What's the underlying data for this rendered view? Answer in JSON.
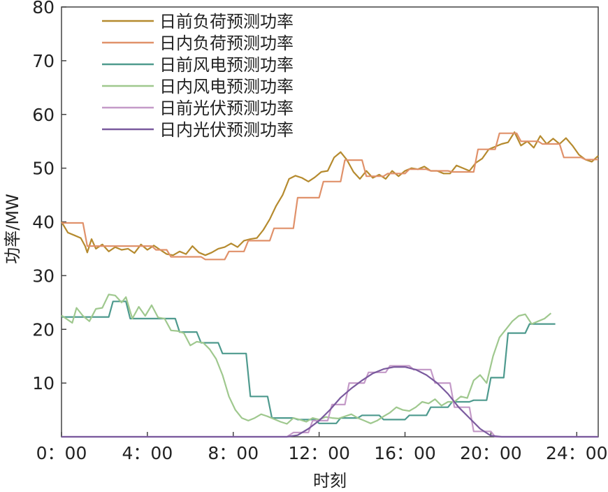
{
  "chart_data": {
    "type": "line",
    "xlabel": "时刻",
    "ylabel": "功率/MW",
    "xlim": [
      0,
      25
    ],
    "ylim": [
      0,
      80
    ],
    "xticks": [
      {
        "x": 0,
        "label": "0：00"
      },
      {
        "x": 4,
        "label": "4：00"
      },
      {
        "x": 8,
        "label": "8：00"
      },
      {
        "x": 12,
        "label": "12：00"
      },
      {
        "x": 16,
        "label": "16：00"
      },
      {
        "x": 20,
        "label": "20：00"
      },
      {
        "x": 24,
        "label": "24：00"
      }
    ],
    "yticks": [
      {
        "y": 10,
        "label": "10"
      },
      {
        "y": 20,
        "label": "20"
      },
      {
        "y": 30,
        "label": "30"
      },
      {
        "y": 40,
        "label": "40"
      },
      {
        "y": 50,
        "label": "50"
      },
      {
        "y": 60,
        "label": "60"
      },
      {
        "y": 70,
        "label": "70"
      },
      {
        "y": 80,
        "label": "80"
      }
    ],
    "legend_position": "top-left",
    "grid": false,
    "series": [
      {
        "name": "日前负荷预测功率",
        "color": "#b58a2e",
        "points": [
          [
            0,
            40
          ],
          [
            0.3,
            38
          ],
          [
            0.6,
            37.5
          ],
          [
            0.9,
            37
          ],
          [
            1.1,
            35.5
          ],
          [
            1.2,
            34.3
          ],
          [
            1.4,
            36.8
          ],
          [
            1.6,
            35
          ],
          [
            1.9,
            35.8
          ],
          [
            2.2,
            34.5
          ],
          [
            2.5,
            35.3
          ],
          [
            2.8,
            34.8
          ],
          [
            3.1,
            35
          ],
          [
            3.4,
            34.2
          ],
          [
            3.7,
            35.8
          ],
          [
            4,
            34.8
          ],
          [
            4.3,
            35.6
          ],
          [
            4.6,
            34.8
          ],
          [
            4.9,
            34
          ],
          [
            5.2,
            33.8
          ],
          [
            5.5,
            34.5
          ],
          [
            5.8,
            34
          ],
          [
            6.1,
            35.5
          ],
          [
            6.4,
            34.3
          ],
          [
            6.7,
            33.8
          ],
          [
            7,
            34.3
          ],
          [
            7.3,
            35
          ],
          [
            7.6,
            35.3
          ],
          [
            7.9,
            36
          ],
          [
            8.2,
            35.3
          ],
          [
            8.5,
            36.5
          ],
          [
            8.8,
            36.8
          ],
          [
            9.1,
            37
          ],
          [
            9.4,
            38.5
          ],
          [
            9.7,
            40.5
          ],
          [
            10,
            43
          ],
          [
            10.3,
            45
          ],
          [
            10.6,
            48
          ],
          [
            10.9,
            48.6
          ],
          [
            11.2,
            48.2
          ],
          [
            11.5,
            47.5
          ],
          [
            11.8,
            48.3
          ],
          [
            12.1,
            49.3
          ],
          [
            12.4,
            49.5
          ],
          [
            12.7,
            52
          ],
          [
            13,
            53
          ],
          [
            13.3,
            51.5
          ],
          [
            13.6,
            49.3
          ],
          [
            13.9,
            48
          ],
          [
            14.2,
            49.5
          ],
          [
            14.5,
            48.2
          ],
          [
            14.8,
            48.8
          ],
          [
            15.1,
            48
          ],
          [
            15.4,
            49.5
          ],
          [
            15.7,
            48.5
          ],
          [
            16,
            49.5
          ],
          [
            16.3,
            50
          ],
          [
            16.6,
            49.8
          ],
          [
            16.9,
            50.3
          ],
          [
            17.2,
            49.5
          ],
          [
            17.5,
            49.5
          ],
          [
            17.8,
            49
          ],
          [
            18.1,
            49
          ],
          [
            18.4,
            50.5
          ],
          [
            18.7,
            50
          ],
          [
            19,
            49.5
          ],
          [
            19.3,
            51
          ],
          [
            19.6,
            51.8
          ],
          [
            19.9,
            53.5
          ],
          [
            20.2,
            54
          ],
          [
            20.5,
            54.5
          ],
          [
            20.8,
            54.8
          ],
          [
            21.1,
            56.7
          ],
          [
            21.4,
            54.2
          ],
          [
            21.7,
            55
          ],
          [
            22,
            53.8
          ],
          [
            22.3,
            56
          ],
          [
            22.6,
            54.5
          ],
          [
            22.9,
            55.5
          ],
          [
            23.2,
            54.5
          ],
          [
            23.5,
            55.6
          ],
          [
            23.8,
            54.2
          ],
          [
            24.1,
            52.5
          ],
          [
            24.4,
            51.6
          ],
          [
            24.7,
            51.2
          ],
          [
            25,
            52.3
          ]
        ]
      },
      {
        "name": "日内负荷预测功率",
        "color": "#e0916a",
        "points": [
          [
            0,
            39.8
          ],
          [
            1.0,
            39.8
          ],
          [
            1.2,
            35.5
          ],
          [
            4.2,
            35.5
          ],
          [
            4.4,
            34.8
          ],
          [
            4.9,
            34.8
          ],
          [
            5.1,
            33.5
          ],
          [
            6.5,
            33.5
          ],
          [
            6.7,
            33
          ],
          [
            7.6,
            33
          ],
          [
            7.8,
            34.5
          ],
          [
            8.5,
            34.5
          ],
          [
            8.7,
            36.5
          ],
          [
            9.7,
            36.5
          ],
          [
            9.9,
            38.8
          ],
          [
            10.8,
            38.8
          ],
          [
            11,
            44.5
          ],
          [
            12,
            44.5
          ],
          [
            12.2,
            47.5
          ],
          [
            13,
            47.5
          ],
          [
            13.2,
            51.5
          ],
          [
            14,
            51.5
          ],
          [
            14.2,
            48.5
          ],
          [
            15,
            48.5
          ],
          [
            15.2,
            49
          ],
          [
            16,
            49
          ],
          [
            16.2,
            49.8
          ],
          [
            17,
            49.8
          ],
          [
            17.2,
            49.5
          ],
          [
            18,
            49.5
          ],
          [
            18.2,
            49.3
          ],
          [
            19.2,
            49.3
          ],
          [
            19.4,
            53.5
          ],
          [
            20.2,
            53.5
          ],
          [
            20.4,
            56.5
          ],
          [
            21.2,
            56.5
          ],
          [
            21.4,
            55
          ],
          [
            22.2,
            55
          ],
          [
            22.4,
            54.5
          ],
          [
            23.2,
            54.5
          ],
          [
            23.4,
            52
          ],
          [
            24.2,
            52
          ],
          [
            24.4,
            51.6
          ],
          [
            25,
            51.6
          ]
        ]
      },
      {
        "name": "日前风电预测功率",
        "color": "#4e9a8e",
        "points": [
          [
            0,
            22.3
          ],
          [
            2.2,
            22.3
          ],
          [
            2.4,
            25.2
          ],
          [
            3.0,
            25.2
          ],
          [
            3.2,
            22
          ],
          [
            5.3,
            22
          ],
          [
            5.5,
            19.5
          ],
          [
            6.3,
            19.5
          ],
          [
            6.5,
            17.5
          ],
          [
            7.3,
            17.5
          ],
          [
            7.5,
            15.5
          ],
          [
            8.6,
            15.5
          ],
          [
            8.8,
            7.5
          ],
          [
            9.6,
            7.5
          ],
          [
            9.8,
            3.5
          ],
          [
            10.8,
            3.5
          ],
          [
            11,
            3.2
          ],
          [
            11.8,
            3.2
          ],
          [
            12,
            2.5
          ],
          [
            12.8,
            2.5
          ],
          [
            13,
            3.5
          ],
          [
            13.8,
            3.5
          ],
          [
            14,
            4
          ],
          [
            14.8,
            4
          ],
          [
            15,
            3.2
          ],
          [
            16,
            3.2
          ],
          [
            16.2,
            4
          ],
          [
            17,
            4
          ],
          [
            17.2,
            5.5
          ],
          [
            18,
            5.5
          ],
          [
            18.2,
            6.5
          ],
          [
            19,
            6.5
          ],
          [
            19.2,
            6.8
          ],
          [
            19.8,
            6.8
          ],
          [
            20,
            11
          ],
          [
            20.6,
            11
          ],
          [
            20.8,
            19.3
          ],
          [
            21.6,
            19.3
          ],
          [
            21.8,
            21
          ],
          [
            23,
            21
          ]
        ]
      },
      {
        "name": "日内风电预测功率",
        "color": "#9fc88e",
        "points": [
          [
            0,
            22.6
          ],
          [
            0.5,
            21.2
          ],
          [
            0.7,
            24
          ],
          [
            1.0,
            22.5
          ],
          [
            1.3,
            21.5
          ],
          [
            1.6,
            23.8
          ],
          [
            1.9,
            24
          ],
          [
            2.2,
            26.5
          ],
          [
            2.5,
            26.3
          ],
          [
            2.8,
            25
          ],
          [
            3.0,
            26
          ],
          [
            3.3,
            22
          ],
          [
            3.6,
            24.2
          ],
          [
            3.9,
            22.5
          ],
          [
            4.2,
            24.5
          ],
          [
            4.5,
            22.2
          ],
          [
            4.8,
            22
          ],
          [
            5.1,
            19.8
          ],
          [
            5.4,
            19.7
          ],
          [
            5.7,
            19.3
          ],
          [
            6.0,
            17
          ],
          [
            6.3,
            17.7
          ],
          [
            6.6,
            17.5
          ],
          [
            6.9,
            16.3
          ],
          [
            7.2,
            14.5
          ],
          [
            7.5,
            11.5
          ],
          [
            7.8,
            7.5
          ],
          [
            8.1,
            5
          ],
          [
            8.4,
            3.5
          ],
          [
            8.7,
            3
          ],
          [
            9,
            3.5
          ],
          [
            9.3,
            4.2
          ],
          [
            9.6,
            3.8
          ],
          [
            9.9,
            3.3
          ],
          [
            10.2,
            2.8
          ],
          [
            10.5,
            2.4
          ],
          [
            10.8,
            3.5
          ],
          [
            11.1,
            3.2
          ],
          [
            11.4,
            2.8
          ],
          [
            11.7,
            3.5
          ],
          [
            12,
            3.2
          ],
          [
            12.3,
            3.7
          ],
          [
            12.6,
            3.5
          ],
          [
            12.9,
            3.4
          ],
          [
            13.2,
            3.8
          ],
          [
            13.5,
            4.2
          ],
          [
            13.8,
            3.5
          ],
          [
            14.1,
            3
          ],
          [
            14.4,
            2.5
          ],
          [
            14.7,
            3
          ],
          [
            15,
            3.8
          ],
          [
            15.3,
            4.5
          ],
          [
            15.6,
            5.5
          ],
          [
            15.9,
            5
          ],
          [
            16.2,
            4.8
          ],
          [
            16.5,
            5.5
          ],
          [
            16.8,
            6.5
          ],
          [
            17.1,
            6.2
          ],
          [
            17.4,
            7
          ],
          [
            17.7,
            5.8
          ],
          [
            18,
            6.5
          ],
          [
            18.3,
            6.5
          ],
          [
            18.6,
            7.5
          ],
          [
            18.9,
            7.2
          ],
          [
            19.2,
            10.5
          ],
          [
            19.5,
            11.5
          ],
          [
            19.8,
            10
          ],
          [
            20.1,
            15
          ],
          [
            20.4,
            18.5
          ],
          [
            20.7,
            20
          ],
          [
            21,
            21.5
          ],
          [
            21.3,
            22.5
          ],
          [
            21.6,
            22.8
          ],
          [
            21.9,
            21
          ],
          [
            22.2,
            21.5
          ],
          [
            22.5,
            22
          ],
          [
            22.8,
            23
          ]
        ]
      },
      {
        "name": "日前光伏预测功率",
        "color": "#c49ac8",
        "points": [
          [
            0,
            0
          ],
          [
            10.5,
            0
          ],
          [
            10.8,
            0.8
          ],
          [
            11.5,
            0.8
          ],
          [
            11.7,
            3
          ],
          [
            12.4,
            3
          ],
          [
            12.6,
            6
          ],
          [
            13.2,
            6
          ],
          [
            13.4,
            10
          ],
          [
            14.1,
            10
          ],
          [
            14.3,
            12
          ],
          [
            15.1,
            12
          ],
          [
            15.3,
            13.2
          ],
          [
            16.2,
            13.2
          ],
          [
            16.4,
            12.5
          ],
          [
            17.2,
            12.5
          ],
          [
            17.4,
            10
          ],
          [
            18.1,
            10
          ],
          [
            18.3,
            5.5
          ],
          [
            19.0,
            5.5
          ],
          [
            19.2,
            1
          ],
          [
            20,
            1
          ],
          [
            20.2,
            0
          ],
          [
            25,
            0
          ]
        ]
      },
      {
        "name": "日内光伏预测功率",
        "color": "#7a5a9e",
        "points": [
          [
            0,
            0
          ],
          [
            10.5,
            0
          ],
          [
            11,
            0.3
          ],
          [
            11.5,
            1.5
          ],
          [
            12,
            3
          ],
          [
            12.5,
            5
          ],
          [
            13,
            7.3
          ],
          [
            13.5,
            9
          ],
          [
            14,
            10.5
          ],
          [
            14.5,
            11.8
          ],
          [
            15,
            12.6
          ],
          [
            15.5,
            13
          ],
          [
            16,
            13
          ],
          [
            16.5,
            12.5
          ],
          [
            17,
            11.5
          ],
          [
            17.5,
            10
          ],
          [
            18,
            8
          ],
          [
            18.5,
            5.5
          ],
          [
            19,
            3.5
          ],
          [
            19.5,
            1.5
          ],
          [
            20,
            0.2
          ],
          [
            20.5,
            0
          ],
          [
            25,
            0
          ]
        ]
      }
    ]
  }
}
